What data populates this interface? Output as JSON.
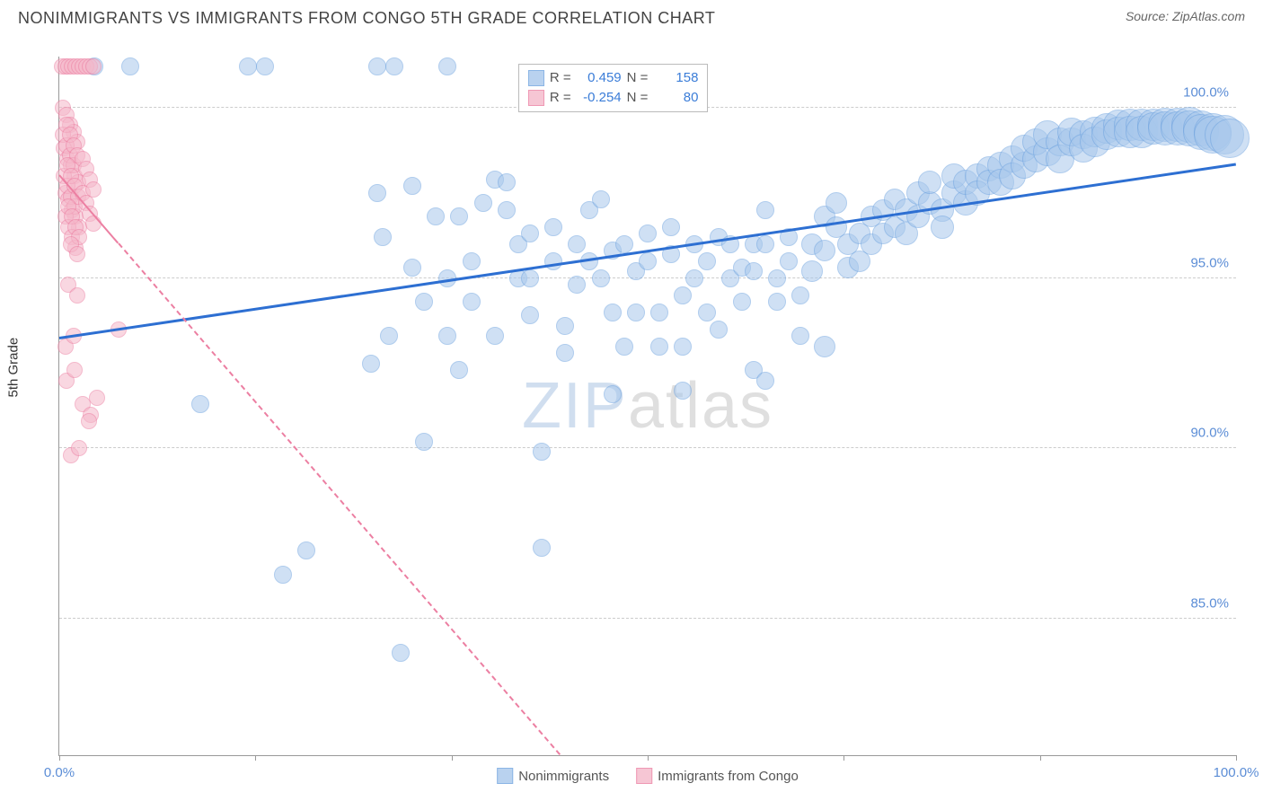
{
  "title": "NONIMMIGRANTS VS IMMIGRANTS FROM CONGO 5TH GRADE CORRELATION CHART",
  "source_label": "Source: ",
  "source_value": "ZipAtlas.com",
  "ylabel": "5th Grade",
  "watermark_a": "ZIP",
  "watermark_b": "atlas",
  "chart": {
    "type": "scatter",
    "xlim": [
      0,
      100
    ],
    "ylim": [
      81,
      101.5
    ],
    "x_ticks": [
      0,
      16.67,
      33.33,
      50,
      66.67,
      83.33,
      100
    ],
    "x_tick_labels": {
      "0": "0.0%",
      "100": "100.0%"
    },
    "y_ticks": [
      85,
      90,
      95,
      100
    ],
    "y_tick_labels": {
      "85": "85.0%",
      "90": "90.0%",
      "95": "95.0%",
      "100": "100.0%"
    },
    "grid_color": "#cccccc",
    "axis_color": "#999999",
    "background": "#ffffff",
    "tick_label_color": "#5b8dd6",
    "series": [
      {
        "name": "Nonimmigrants",
        "fill": "#a8c8ec",
        "stroke": "#6fa3df",
        "fill_opacity": 0.55,
        "trend": {
          "y_at_x0": 93.2,
          "y_at_x100": 98.3,
          "color": "#2d6fd2",
          "width": 3,
          "dash": false,
          "clip_to_plot": true
        },
        "R_label": "R =",
        "R": "0.459",
        "N_label": "N =",
        "N": "158",
        "points": [
          [
            3,
            101.2,
            10
          ],
          [
            6,
            101.2,
            10
          ],
          [
            16,
            101.2,
            10
          ],
          [
            17.5,
            101.2,
            10
          ],
          [
            27,
            101.2,
            10
          ],
          [
            28.5,
            101.2,
            10
          ],
          [
            33,
            101.2,
            10
          ],
          [
            12,
            91.3,
            10
          ],
          [
            19,
            86.3,
            10
          ],
          [
            21,
            87.0,
            10
          ],
          [
            26.5,
            92.5,
            10
          ],
          [
            27,
            97.5,
            10
          ],
          [
            27.5,
            96.2,
            10
          ],
          [
            28,
            93.3,
            10
          ],
          [
            29,
            84.0,
            10
          ],
          [
            30,
            97.7,
            10
          ],
          [
            30,
            95.3,
            10
          ],
          [
            31,
            94.3,
            10
          ],
          [
            31,
            90.2,
            10
          ],
          [
            32,
            96.8,
            10
          ],
          [
            33,
            95.0,
            10
          ],
          [
            33,
            93.3,
            10
          ],
          [
            34,
            92.3,
            10
          ],
          [
            34,
            96.8,
            10
          ],
          [
            35,
            95.5,
            10
          ],
          [
            35,
            94.3,
            10
          ],
          [
            36,
            97.2,
            10
          ],
          [
            37,
            97.9,
            10
          ],
          [
            37,
            93.3,
            10
          ],
          [
            38,
            97.8,
            10
          ],
          [
            38,
            97.0,
            10
          ],
          [
            39,
            96.0,
            10
          ],
          [
            39,
            95.0,
            10
          ],
          [
            40,
            96.3,
            10
          ],
          [
            40,
            95.0,
            10
          ],
          [
            40,
            93.9,
            10
          ],
          [
            41,
            89.9,
            10
          ],
          [
            41,
            87.1,
            10
          ],
          [
            42,
            95.5,
            10
          ],
          [
            42,
            96.5,
            10
          ],
          [
            43,
            93.6,
            10
          ],
          [
            43,
            92.8,
            10
          ],
          [
            44,
            96.0,
            10
          ],
          [
            44,
            94.8,
            10
          ],
          [
            45,
            95.5,
            10
          ],
          [
            45,
            97.0,
            10
          ],
          [
            46,
            97.3,
            10
          ],
          [
            46,
            95.0,
            10
          ],
          [
            47,
            94.0,
            10
          ],
          [
            47,
            95.8,
            10
          ],
          [
            47,
            91.6,
            10
          ],
          [
            48,
            93.0,
            10
          ],
          [
            48,
            96.0,
            10
          ],
          [
            49,
            95.2,
            10
          ],
          [
            49,
            94.0,
            10
          ],
          [
            50,
            95.5,
            10
          ],
          [
            50,
            96.3,
            10
          ],
          [
            51,
            94.0,
            10
          ],
          [
            51,
            93.0,
            10
          ],
          [
            52,
            95.7,
            10
          ],
          [
            52,
            96.5,
            10
          ],
          [
            53,
            93.0,
            10
          ],
          [
            53,
            94.5,
            10
          ],
          [
            53,
            91.7,
            10
          ],
          [
            54,
            96.0,
            10
          ],
          [
            54,
            95.0,
            10
          ],
          [
            55,
            94.0,
            10
          ],
          [
            55,
            95.5,
            10
          ],
          [
            56,
            96.2,
            10
          ],
          [
            56,
            93.5,
            10
          ],
          [
            57,
            95.0,
            10
          ],
          [
            57,
            96.0,
            10
          ],
          [
            58,
            95.3,
            10
          ],
          [
            58,
            94.3,
            10
          ],
          [
            59,
            96.0,
            10
          ],
          [
            59,
            95.2,
            10
          ],
          [
            59,
            92.3,
            10
          ],
          [
            60,
            92.0,
            10
          ],
          [
            60,
            97.0,
            10
          ],
          [
            60,
            96.0,
            10
          ],
          [
            61,
            95.0,
            10
          ],
          [
            61,
            94.3,
            10
          ],
          [
            62,
            95.5,
            10
          ],
          [
            62,
            96.2,
            10
          ],
          [
            63,
            94.5,
            10
          ],
          [
            63,
            93.3,
            10
          ],
          [
            64,
            95.2,
            12
          ],
          [
            64,
            96.0,
            12
          ],
          [
            65,
            95.8,
            12
          ],
          [
            65,
            96.8,
            12
          ],
          [
            65,
            93.0,
            12
          ],
          [
            66,
            96.5,
            12
          ],
          [
            66,
            97.2,
            12
          ],
          [
            67,
            96.0,
            12
          ],
          [
            67,
            95.3,
            12
          ],
          [
            68,
            96.3,
            12
          ],
          [
            68,
            95.5,
            12
          ],
          [
            69,
            96.8,
            12
          ],
          [
            69,
            96.0,
            12
          ],
          [
            70,
            97.0,
            12
          ],
          [
            70,
            96.3,
            12
          ],
          [
            71,
            97.3,
            12
          ],
          [
            71,
            96.5,
            12
          ],
          [
            72,
            97.0,
            13
          ],
          [
            72,
            96.3,
            13
          ],
          [
            73,
            97.5,
            13
          ],
          [
            73,
            96.8,
            13
          ],
          [
            74,
            97.2,
            13
          ],
          [
            74,
            97.8,
            13
          ],
          [
            75,
            97.0,
            13
          ],
          [
            75,
            96.5,
            13
          ],
          [
            76,
            97.5,
            14
          ],
          [
            76,
            98.0,
            14
          ],
          [
            77,
            97.2,
            14
          ],
          [
            77,
            97.8,
            14
          ],
          [
            78,
            98.0,
            14
          ],
          [
            78,
            97.5,
            14
          ],
          [
            79,
            98.2,
            14
          ],
          [
            79,
            97.8,
            14
          ],
          [
            80,
            98.3,
            15
          ],
          [
            80,
            97.8,
            15
          ],
          [
            81,
            98.5,
            15
          ],
          [
            81,
            98.0,
            15
          ],
          [
            82,
            98.3,
            15
          ],
          [
            82,
            98.8,
            15
          ],
          [
            83,
            98.5,
            15
          ],
          [
            83,
            99.0,
            15
          ],
          [
            84,
            98.7,
            16
          ],
          [
            84,
            99.2,
            16
          ],
          [
            85,
            99.0,
            16
          ],
          [
            85,
            98.5,
            16
          ],
          [
            86,
            99.0,
            16
          ],
          [
            86,
            99.3,
            16
          ],
          [
            87,
            99.2,
            16
          ],
          [
            87,
            98.8,
            16
          ],
          [
            88,
            99.3,
            17
          ],
          [
            88,
            99.0,
            17
          ],
          [
            89,
            99.4,
            17
          ],
          [
            89,
            99.2,
            17
          ],
          [
            90,
            99.5,
            17
          ],
          [
            90,
            99.3,
            17
          ],
          [
            91,
            99.5,
            18
          ],
          [
            91,
            99.3,
            18
          ],
          [
            92,
            99.5,
            18
          ],
          [
            92,
            99.3,
            18
          ],
          [
            93,
            99.5,
            18
          ],
          [
            93,
            99.4,
            18
          ],
          [
            94,
            99.5,
            19
          ],
          [
            94,
            99.4,
            19
          ],
          [
            95,
            99.5,
            19
          ],
          [
            95,
            99.4,
            19
          ],
          [
            96,
            99.5,
            20
          ],
          [
            96,
            99.4,
            20
          ],
          [
            97,
            99.4,
            20
          ],
          [
            97,
            99.3,
            20
          ],
          [
            98,
            99.3,
            21
          ],
          [
            98,
            99.2,
            21
          ],
          [
            99,
            99.2,
            22
          ],
          [
            99.5,
            99.1,
            22
          ]
        ]
      },
      {
        "name": "Immigrants from Congo",
        "fill": "#f5b8ca",
        "stroke": "#ec7fa2",
        "fill_opacity": 0.55,
        "trend": {
          "y_at_x0": 98.0,
          "y_at_x100": 58.0,
          "color": "#ec7fa2",
          "width": 2,
          "dash": true,
          "solid_until_x": 5,
          "clip_to_plot": true
        },
        "R_label": "R =",
        "R": "-0.254",
        "N_label": "N =",
        "N": "80",
        "points": [
          [
            0.2,
            101.2,
            9
          ],
          [
            0.5,
            101.2,
            9
          ],
          [
            0.8,
            101.2,
            9
          ],
          [
            1.1,
            101.2,
            9
          ],
          [
            1.4,
            101.2,
            9
          ],
          [
            1.7,
            101.2,
            9
          ],
          [
            2.0,
            101.2,
            9
          ],
          [
            2.3,
            101.2,
            9
          ],
          [
            2.6,
            101.2,
            9
          ],
          [
            2.9,
            101.2,
            9
          ],
          [
            0.3,
            100.0,
            9
          ],
          [
            0.6,
            99.8,
            9
          ],
          [
            0.9,
            99.5,
            9
          ],
          [
            1.2,
            99.3,
            9
          ],
          [
            1.5,
            99.0,
            9
          ],
          [
            0.4,
            98.8,
            9
          ],
          [
            0.7,
            98.5,
            9
          ],
          [
            1.0,
            98.3,
            9
          ],
          [
            1.3,
            98.0,
            9
          ],
          [
            1.6,
            97.8,
            9
          ],
          [
            0.5,
            97.5,
            9
          ],
          [
            0.8,
            97.3,
            9
          ],
          [
            1.1,
            97.0,
            9
          ],
          [
            1.4,
            96.8,
            9
          ],
          [
            1.7,
            96.5,
            9
          ],
          [
            0.3,
            99.2,
            9
          ],
          [
            0.6,
            98.9,
            9
          ],
          [
            0.9,
            98.6,
            9
          ],
          [
            1.2,
            98.3,
            9
          ],
          [
            0.4,
            98.0,
            9
          ],
          [
            0.7,
            97.7,
            9
          ],
          [
            1.0,
            97.4,
            9
          ],
          [
            1.3,
            97.1,
            9
          ],
          [
            0.5,
            96.8,
            9
          ],
          [
            0.8,
            96.5,
            9
          ],
          [
            1.1,
            96.2,
            9
          ],
          [
            1.4,
            95.9,
            9
          ],
          [
            0.6,
            99.5,
            9
          ],
          [
            0.9,
            99.2,
            9
          ],
          [
            1.2,
            98.9,
            9
          ],
          [
            1.5,
            98.6,
            9
          ],
          [
            0.7,
            98.3,
            9
          ],
          [
            1.0,
            98.0,
            9
          ],
          [
            1.3,
            97.7,
            9
          ],
          [
            1.6,
            97.4,
            9
          ],
          [
            0.8,
            97.1,
            9
          ],
          [
            1.1,
            96.8,
            9
          ],
          [
            1.4,
            96.5,
            9
          ],
          [
            1.7,
            96.2,
            9
          ],
          [
            2.0,
            97.5,
            9
          ],
          [
            2.3,
            97.2,
            9
          ],
          [
            2.6,
            96.9,
            9
          ],
          [
            2.9,
            96.6,
            9
          ],
          [
            2.0,
            98.5,
            9
          ],
          [
            2.3,
            98.2,
            9
          ],
          [
            2.6,
            97.9,
            9
          ],
          [
            2.9,
            97.6,
            9
          ],
          [
            1.0,
            96.0,
            9
          ],
          [
            1.5,
            95.7,
            9
          ],
          [
            0.8,
            94.8,
            9
          ],
          [
            1.5,
            94.5,
            9
          ],
          [
            0.5,
            93.0,
            9
          ],
          [
            1.2,
            93.3,
            9
          ],
          [
            0.6,
            92.0,
            9
          ],
          [
            1.3,
            92.3,
            9
          ],
          [
            2.0,
            91.3,
            9
          ],
          [
            2.7,
            91.0,
            9
          ],
          [
            2.5,
            90.8,
            9
          ],
          [
            3.2,
            91.5,
            9
          ],
          [
            1.0,
            89.8,
            9
          ],
          [
            1.7,
            90.0,
            9
          ],
          [
            5.0,
            93.5,
            9
          ]
        ]
      }
    ],
    "stats_box": {
      "left_pct": 39,
      "top_pct": 1
    },
    "legend_bottom": true
  }
}
